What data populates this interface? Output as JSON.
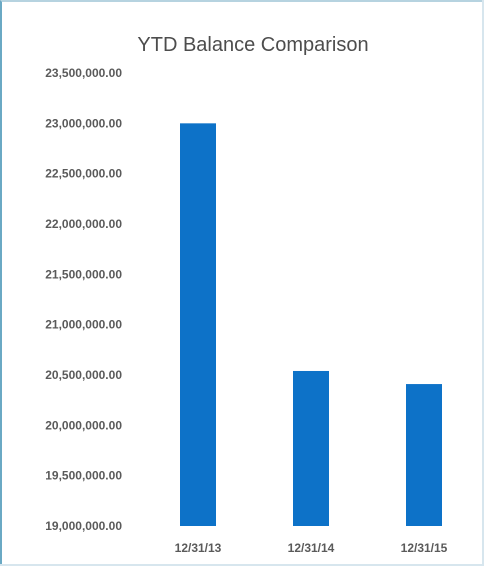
{
  "chart_data": {
    "type": "bar",
    "title": "YTD Balance Comparison",
    "xlabel": "",
    "ylabel": "",
    "categories": [
      "12/31/13",
      "12/31/14",
      "12/31/15"
    ],
    "values": [
      23000000,
      20540000,
      20410000
    ],
    "ylim": [
      19000000,
      23500000
    ],
    "yticks": [
      23500000,
      23000000,
      22500000,
      22000000,
      21500000,
      21000000,
      20500000,
      20000000,
      19500000,
      19000000
    ],
    "ytick_labels": [
      "23,500,000.00",
      "23,000,000.00",
      "22,500,000.00",
      "22,000,000.00",
      "21,500,000.00",
      "21,000,000.00",
      "20,500,000.00",
      "20,000,000.00",
      "19,500,000.00",
      "19,000,000.00"
    ],
    "bar_color": "#0d72c8",
    "grid": false,
    "legend": "none"
  }
}
